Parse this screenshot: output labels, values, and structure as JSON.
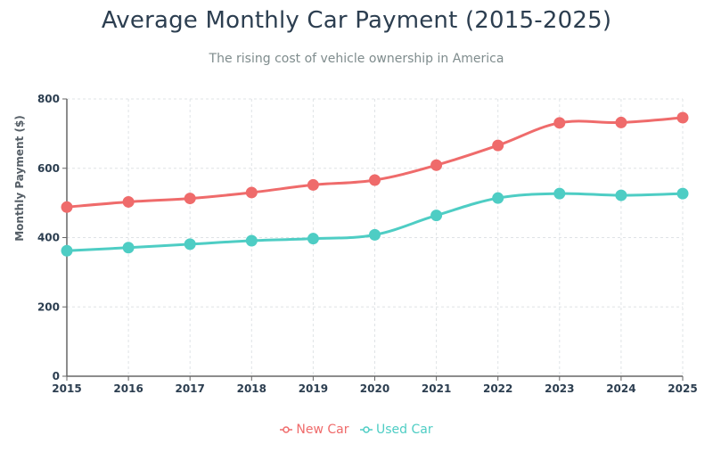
{
  "chart_data": {
    "type": "line",
    "title": "Average Monthly Car Payment (2015-2025)",
    "subtitle": "The rising cost of vehicle ownership in America",
    "xlabel": "",
    "ylabel": "Monthly Payment ($)",
    "x": [
      "2015",
      "2016",
      "2017",
      "2018",
      "2019",
      "2020",
      "2021",
      "2022",
      "2023",
      "2024",
      "2025"
    ],
    "ylim": [
      0,
      800
    ],
    "yticks": [
      "0",
      "200",
      "400",
      "600",
      "800"
    ],
    "grid": true,
    "legend_position": "bottom-center",
    "series": [
      {
        "name": "New Car",
        "color": "#ef6b6b",
        "values": [
          488,
          503,
          513,
          530,
          552,
          566,
          609,
          666,
          731,
          732,
          746
        ]
      },
      {
        "name": "Used Car",
        "color": "#4ecdc4",
        "values": [
          362,
          371,
          381,
          391,
          397,
          408,
          464,
          514,
          527,
          522,
          527
        ]
      }
    ]
  }
}
